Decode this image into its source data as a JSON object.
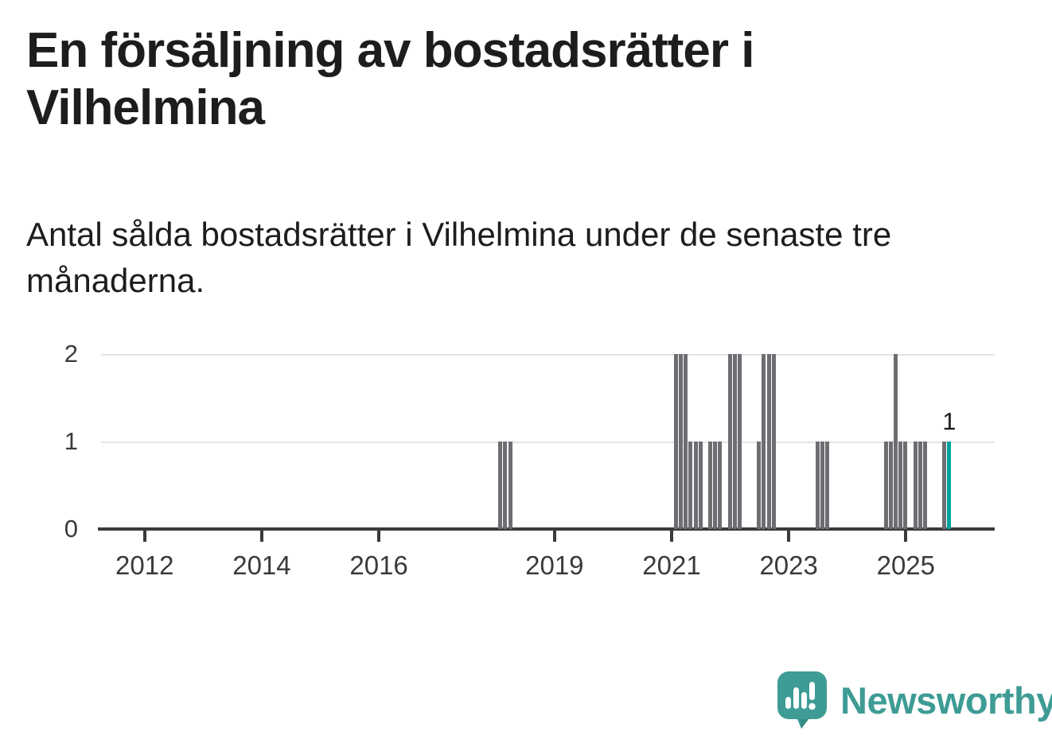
{
  "header": {
    "title": "En försäljning av bostadsrätter i Vilhelmina",
    "subtitle": "Antal sålda bostadsrätter i Vilhelmina under de senaste tre månaderna."
  },
  "chart_data": {
    "type": "bar",
    "title": "En försäljning av bostadsrätter i Vilhelmina",
    "subtitle": "Antal sålda bostadsrätter i Vilhelmina under de senaste tre månaderna.",
    "y_axis": {
      "ticks": [
        0,
        1,
        2
      ],
      "range": [
        0,
        2
      ],
      "grid": "horizontal"
    },
    "x_axis": {
      "tick_years": [
        2012,
        2014,
        2016,
        2019,
        2021,
        2023,
        2025
      ],
      "unit": "month"
    },
    "bar_color": "#6e6d72",
    "highlight_color": "#00a39b",
    "all_other_months_value": 0,
    "points": [
      {
        "month": "2018-02",
        "value": 1
      },
      {
        "month": "2018-03",
        "value": 1
      },
      {
        "month": "2018-04",
        "value": 1
      },
      {
        "month": "2021-02",
        "value": 2
      },
      {
        "month": "2021-03",
        "value": 2
      },
      {
        "month": "2021-04",
        "value": 2
      },
      {
        "month": "2021-05",
        "value": 1
      },
      {
        "month": "2021-06",
        "value": 1
      },
      {
        "month": "2021-07",
        "value": 1
      },
      {
        "month": "2021-09",
        "value": 1
      },
      {
        "month": "2021-10",
        "value": 1
      },
      {
        "month": "2021-11",
        "value": 1
      },
      {
        "month": "2022-01",
        "value": 2
      },
      {
        "month": "2022-02",
        "value": 2
      },
      {
        "month": "2022-03",
        "value": 2
      },
      {
        "month": "2022-07",
        "value": 1
      },
      {
        "month": "2022-08",
        "value": 2
      },
      {
        "month": "2022-09",
        "value": 2
      },
      {
        "month": "2022-10",
        "value": 2
      },
      {
        "month": "2023-07",
        "value": 1
      },
      {
        "month": "2023-08",
        "value": 1
      },
      {
        "month": "2023-09",
        "value": 1
      },
      {
        "month": "2024-09",
        "value": 1
      },
      {
        "month": "2024-10",
        "value": 1
      },
      {
        "month": "2024-11",
        "value": 2
      },
      {
        "month": "2024-12",
        "value": 1
      },
      {
        "month": "2025-01",
        "value": 1
      },
      {
        "month": "2025-03",
        "value": 1
      },
      {
        "month": "2025-04",
        "value": 1
      },
      {
        "month": "2025-05",
        "value": 1
      },
      {
        "month": "2025-09",
        "value": 1
      },
      {
        "month": "2025-10",
        "value": 1,
        "highlight": true,
        "label": "1"
      }
    ]
  },
  "footer": {
    "brand": "Newsworthy",
    "brand_color": "#3e9c95",
    "logo_icon": "bar-chart-speech-bubble-icon"
  }
}
